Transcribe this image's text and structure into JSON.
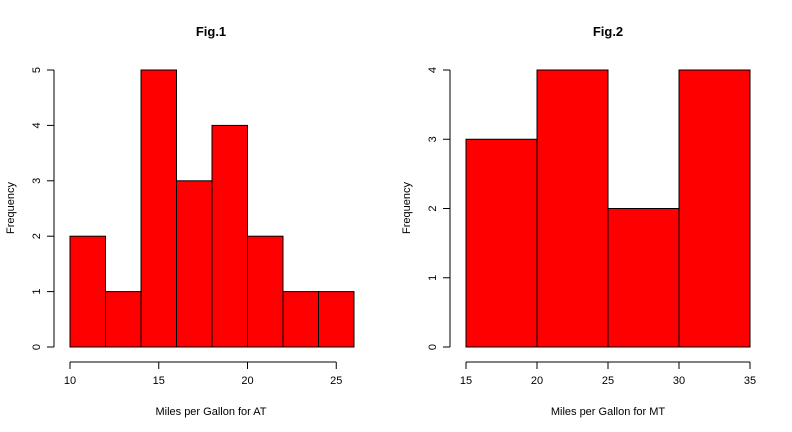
{
  "colors": {
    "bar_fill": "#ff0000",
    "bar_stroke": "#000000",
    "axis": "#000000",
    "background": "#ffffff"
  },
  "chart_data": [
    {
      "type": "bar",
      "subtype": "histogram",
      "title": "Fig.1",
      "xlabel": "Miles per Gallon for AT",
      "ylabel": "Frequency",
      "bins": [
        [
          10,
          12
        ],
        [
          12,
          14
        ],
        [
          14,
          16
        ],
        [
          16,
          18
        ],
        [
          18,
          20
        ],
        [
          20,
          22
        ],
        [
          22,
          24
        ],
        [
          24,
          26
        ]
      ],
      "values": [
        2,
        1,
        5,
        3,
        4,
        2,
        1,
        1
      ],
      "xlim": [
        10,
        26
      ],
      "ylim": [
        0,
        5
      ],
      "xticks": [
        10,
        15,
        20,
        25
      ],
      "yticks": [
        0,
        1,
        2,
        3,
        4,
        5
      ],
      "grid": false
    },
    {
      "type": "bar",
      "subtype": "histogram",
      "title": "Fig.2",
      "xlabel": "Miles per Gallon for MT",
      "ylabel": "Frequency",
      "bins": [
        [
          15,
          20
        ],
        [
          20,
          25
        ],
        [
          25,
          30
        ],
        [
          30,
          35
        ]
      ],
      "values": [
        3,
        4,
        2,
        4
      ],
      "xlim": [
        15,
        35
      ],
      "ylim": [
        0,
        4
      ],
      "xticks": [
        15,
        20,
        25,
        30,
        35
      ],
      "yticks": [
        0,
        1,
        2,
        3,
        4
      ],
      "grid": false
    }
  ]
}
